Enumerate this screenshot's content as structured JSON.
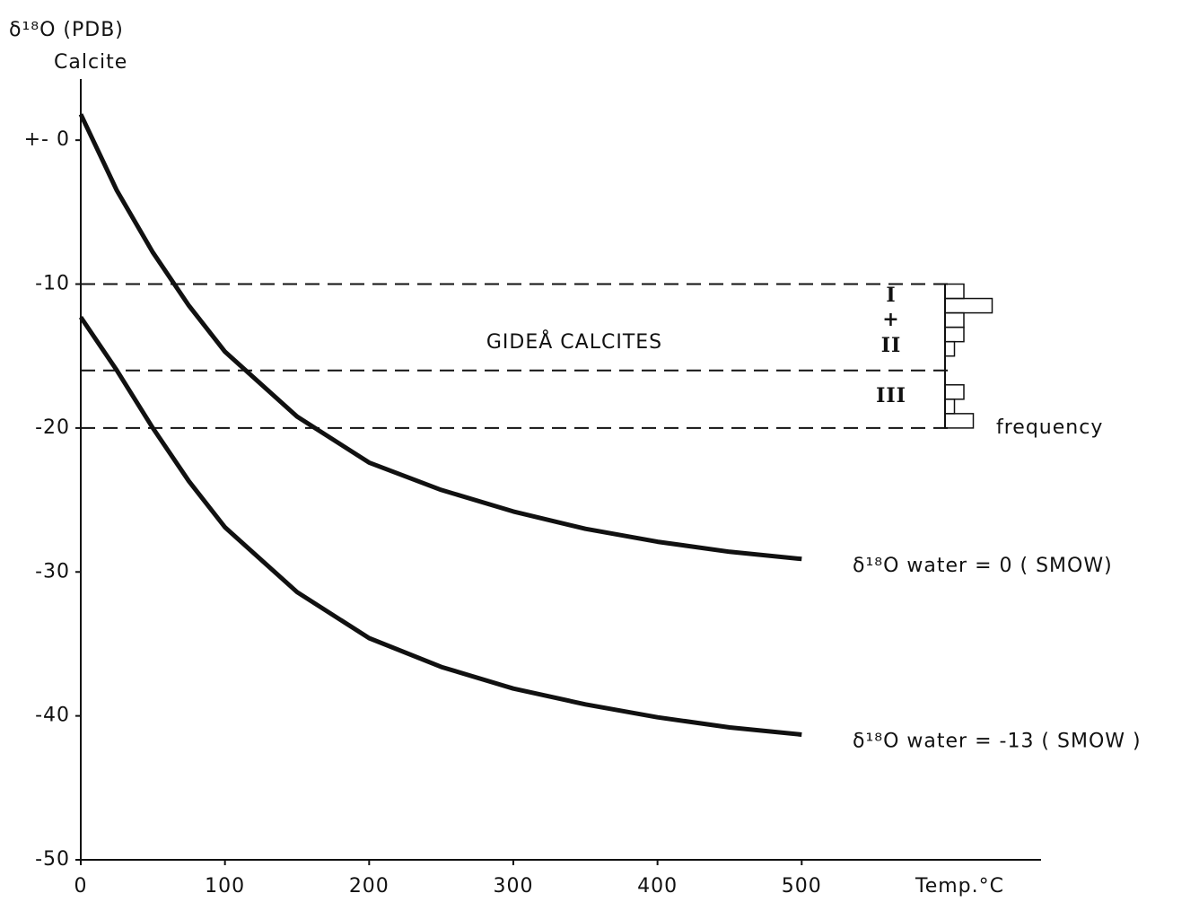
{
  "chart_data": [
    {
      "type": "line",
      "ylabel": "δ¹⁸O   (PDB)",
      "ylabel2": "Calcite",
      "xlabel": "Temp.°C",
      "x": [
        0,
        25,
        50,
        75,
        100,
        150,
        200,
        250,
        300,
        350,
        400,
        450,
        500
      ],
      "series": [
        {
          "name": "δ¹⁸O water = 0  ( SMOW)",
          "color": "#111111",
          "values": [
            1.8,
            -3.5,
            -7.8,
            -11.5,
            -14.7,
            -19.2,
            -22.4,
            -24.3,
            -25.8,
            -27,
            -27.9,
            -28.6,
            -29.1
          ]
        },
        {
          "name": "δ¹⁸O water = -13  ( SMOW )",
          "color": "#111111",
          "values": [
            -12.3,
            -16,
            -20,
            -23.7,
            -26.9,
            -31.4,
            -34.6,
            -36.6,
            -38.1,
            -39.2,
            -40.1,
            -40.8,
            -41.3
          ]
        }
      ],
      "reference_lines": [
        -10,
        -16,
        -20
      ],
      "annotations": [
        "GIDEÅ  CALCITES",
        "I",
        "+",
        "II",
        "III"
      ],
      "xlim": [
        0,
        666
      ],
      "ylim": [
        -50,
        4.25
      ],
      "xticks": [
        0,
        100,
        200,
        300,
        400,
        500
      ],
      "yticks": [
        {
          "value": 0,
          "label": "+- 0"
        },
        -10,
        -20,
        -30,
        -40,
        -50
      ]
    },
    {
      "type": "histogram",
      "xlabel": "frequency",
      "bins": [
        -10,
        -11,
        -12,
        -13,
        -14,
        -15,
        -16,
        -17,
        -18,
        -19,
        -20
      ],
      "counts": [
        2,
        5,
        2,
        2,
        1,
        0,
        0,
        2,
        1,
        3
      ]
    }
  ]
}
